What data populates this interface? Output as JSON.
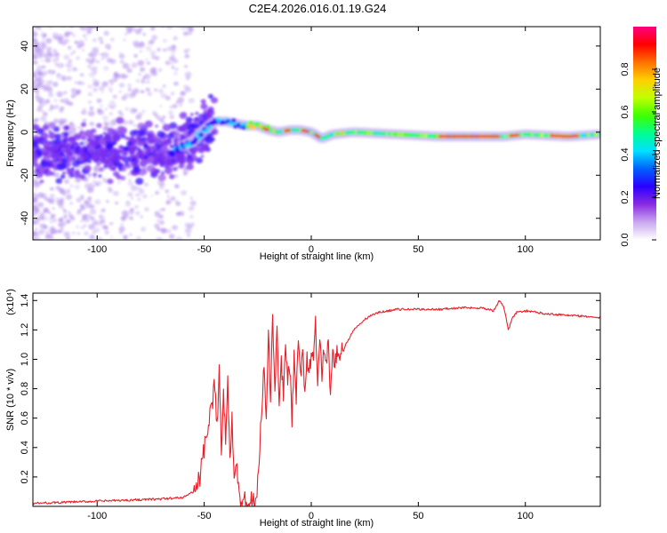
{
  "figure": {
    "title": "C2E4.2026.016.01.19.G24"
  },
  "chart_data": [
    {
      "type": "heatmap",
      "xlabel": "Height of straight line (km)",
      "ylabel": "Frequency (Hz)",
      "xlim": [
        -130,
        135
      ],
      "ylim": [
        -50,
        49
      ],
      "x_ticks": [
        -100,
        -50,
        0,
        50,
        100
      ],
      "y_ticks": [
        -40,
        -20,
        0,
        20,
        40
      ],
      "grid": false,
      "colorbar": {
        "label": "Normalized spectral amplitude",
        "range": [
          0,
          1
        ],
        "ticks": [
          0.0,
          0.2,
          0.4,
          0.6,
          0.8
        ],
        "colors": [
          "#ffffff",
          "#c9a8f0",
          "#8a2be2",
          "#2a00ff",
          "#0060ff",
          "#00e0ff",
          "#00ff90",
          "#40ff00",
          "#c0ff00",
          "#ffd000",
          "#ff7000",
          "#ff0000",
          "#ff0080"
        ]
      },
      "ridge": {
        "x": [
          -65,
          -55,
          -50,
          -45,
          -40,
          -35,
          -30,
          -25,
          -20,
          -15,
          -10,
          -5,
          0,
          5,
          10,
          20,
          40,
          60,
          80,
          90,
          100,
          120,
          135
        ],
        "y": [
          -9,
          -4,
          1,
          5,
          5,
          4,
          3,
          3,
          1,
          0,
          1,
          1,
          0,
          -3,
          -1,
          0,
          -1,
          -2,
          -2,
          -2,
          -1,
          -2,
          -1
        ]
      }
    },
    {
      "type": "line",
      "xlabel": "Height of straight line (km)",
      "ylabel": "SNR (10 * v/v)",
      "y_multiplier": "(x10⁴)",
      "xlim": [
        -130,
        135
      ],
      "ylim": [
        0,
        1.45
      ],
      "x_ticks": [
        -100,
        -50,
        0,
        50,
        100
      ],
      "y_ticks": [
        0.2,
        0.4,
        0.6,
        0.8,
        1.0,
        1.2,
        1.4
      ],
      "grid": false,
      "series": [
        {
          "color": "#e8202a",
          "x": [
            -130,
            -110,
            -90,
            -70,
            -60,
            -55,
            -52,
            -50,
            -48,
            -46,
            -45,
            -44,
            -43,
            -42,
            -41,
            -40,
            -39,
            -38,
            -37,
            -36,
            -35,
            -34,
            -33,
            -32,
            -30,
            -28,
            -26,
            -25,
            -24,
            -23,
            -22,
            -21,
            -20,
            -19,
            -18,
            -17,
            -16,
            -15,
            -14,
            -13,
            -12,
            -11,
            -10,
            -9,
            -8,
            -7,
            -6,
            -5,
            -4,
            -3,
            -2,
            -1,
            0,
            1,
            2,
            3,
            4,
            5,
            6,
            7,
            8,
            9,
            10,
            11,
            12,
            13,
            14,
            15,
            16,
            18,
            20,
            22,
            25,
            28,
            32,
            36,
            40,
            45,
            50,
            60,
            70,
            80,
            85,
            88,
            90,
            92,
            94,
            96,
            100,
            110,
            120,
            130,
            135
          ],
          "y": [
            0.02,
            0.03,
            0.04,
            0.05,
            0.06,
            0.1,
            0.2,
            0.38,
            0.55,
            0.7,
            0.85,
            0.55,
            0.95,
            0.35,
            0.8,
            0.45,
            0.9,
            0.3,
            0.6,
            0.25,
            0.35,
            0.15,
            0.05,
            0.03,
            0.03,
            0.03,
            0.03,
            0.15,
            0.4,
            0.7,
            0.95,
            0.55,
            1.15,
            0.7,
            1.3,
            0.8,
            1.2,
            0.65,
            1.0,
            0.75,
            1.05,
            0.85,
            0.95,
            0.6,
            1.0,
            0.75,
            1.1,
            0.85,
            1.05,
            0.8,
            1.0,
            0.9,
            1.05,
            0.95,
            1.25,
            0.85,
            1.15,
            0.9,
            1.05,
            0.95,
            1.1,
            0.75,
            1.0,
            0.95,
            1.05,
            1.0,
            1.1,
            1.05,
            1.1,
            1.15,
            1.2,
            1.23,
            1.27,
            1.3,
            1.32,
            1.33,
            1.34,
            1.34,
            1.34,
            1.34,
            1.35,
            1.35,
            1.33,
            1.4,
            1.35,
            1.2,
            1.28,
            1.32,
            1.33,
            1.31,
            1.3,
            1.29,
            1.28
          ]
        }
      ]
    }
  ]
}
